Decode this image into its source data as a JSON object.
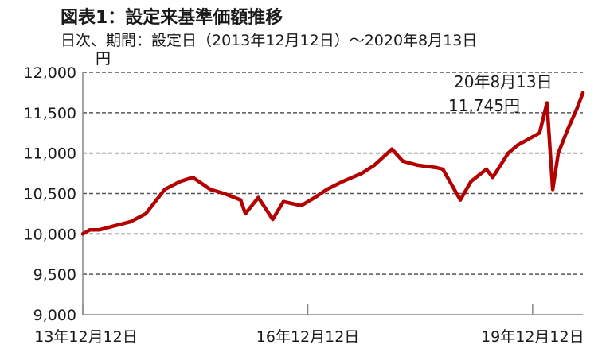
{
  "header": {
    "title": "図表1：設定来基準価額推移",
    "subtitle": "日次、期間：設定日（2013年12月12日）～2020年8月13日"
  },
  "colors": {
    "series": "#b30000",
    "grid": "#555555",
    "axis": "#888888"
  },
  "chart_data": {
    "type": "line",
    "title": "図表1：設定来基準価額推移",
    "subtitle": "日次、期間：設定日（2013年12月12日）～2020年8月13日",
    "ylabel": "円",
    "xlabel": "",
    "ylim": [
      9000,
      12000
    ],
    "yticks": [
      9000,
      9500,
      10000,
      10500,
      11000,
      11500,
      12000
    ],
    "ytick_labels": [
      "9,000",
      "9,500",
      "10,000",
      "10,500",
      "11,000",
      "11,500",
      "12,000"
    ],
    "xlim": [
      "2013-12-12",
      "2020-08-13"
    ],
    "xticks": [
      "2013-12-12",
      "2016-12-12",
      "2019-12-12"
    ],
    "xtick_labels": [
      "13年12月12日",
      "16年12月12日",
      "19年12月12日"
    ],
    "grid": true,
    "x": [
      "2013-12-12",
      "2014-01-15",
      "2014-03-01",
      "2014-05-15",
      "2014-08-01",
      "2014-10-15",
      "2015-01-15",
      "2015-04-01",
      "2015-06-01",
      "2015-08-25",
      "2015-11-01",
      "2016-01-20",
      "2016-02-12",
      "2016-04-15",
      "2016-06-24",
      "2016-08-15",
      "2016-11-10",
      "2017-01-15",
      "2017-03-15",
      "2017-06-01",
      "2017-09-01",
      "2017-11-01",
      "2018-01-26",
      "2018-03-20",
      "2018-06-01",
      "2018-09-01",
      "2018-10-01",
      "2018-12-25",
      "2019-02-15",
      "2019-05-01",
      "2019-06-01",
      "2019-08-15",
      "2019-10-01",
      "2019-12-12",
      "2020-01-15",
      "2020-02-20",
      "2020-03-19",
      "2020-04-15",
      "2020-06-01",
      "2020-07-15",
      "2020-08-13"
    ],
    "series": [
      {
        "values": [
          10000,
          10050,
          10050,
          10100,
          10150,
          10250,
          10550,
          10650,
          10700,
          10550,
          10500,
          10420,
          10250,
          10450,
          10180,
          10400,
          10350,
          10450,
          10550,
          10650,
          10750,
          10850,
          11050,
          10900,
          10850,
          10820,
          10800,
          10420,
          10650,
          10800,
          10700,
          11000,
          11100,
          11200,
          11250,
          11620,
          10550,
          11000,
          11300,
          11550,
          11745
        ]
      }
    ],
    "annotation": {
      "lines": [
        "20年8月13日",
        "11,745円"
      ]
    }
  }
}
